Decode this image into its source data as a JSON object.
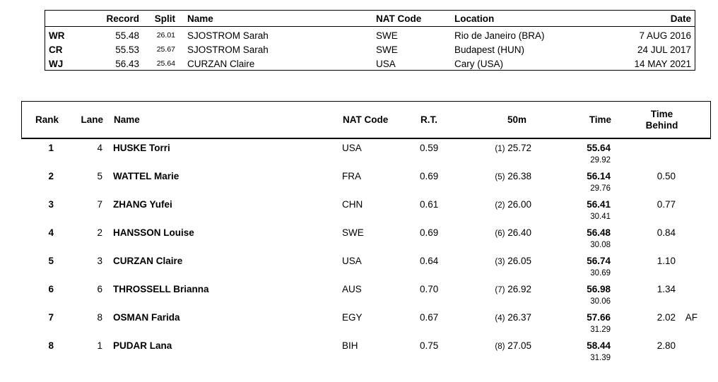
{
  "colors": {
    "text": "#000000",
    "background": "#ffffff",
    "border": "#000000"
  },
  "records_table": {
    "headers": {
      "record": "Record",
      "split": "Split",
      "name": "Name",
      "nat_code": "NAT Code",
      "location": "Location",
      "date": "Date"
    },
    "rows": [
      {
        "tag": "WR",
        "record": "55.48",
        "split": "26.01",
        "name": "SJOSTROM Sarah",
        "nat_code": "SWE",
        "location": "Rio de Janeiro (BRA)",
        "date": "7 AUG 2016"
      },
      {
        "tag": "CR",
        "record": "55.53",
        "split": "25.67",
        "name": "SJOSTROM Sarah",
        "nat_code": "SWE",
        "location": "Budapest (HUN)",
        "date": "24 JUL 2017"
      },
      {
        "tag": "WJ",
        "record": "56.43",
        "split": "25.64",
        "name": "CURZAN Claire",
        "nat_code": "USA",
        "location": "Cary (USA)",
        "date": "14 MAY 2021"
      }
    ]
  },
  "results_table": {
    "headers": {
      "rank": "Rank",
      "lane": "Lane",
      "name": "Name",
      "nat_code": "NAT Code",
      "reaction_time": "R.T.",
      "split_50m": "50m",
      "time": "Time",
      "time_behind_line1": "Time",
      "time_behind_line2": "Behind"
    },
    "rows": [
      {
        "rank": "1",
        "lane": "4",
        "name": "HUSKE Torri",
        "nat_code": "USA",
        "rt": "0.59",
        "split_rank": "(1)",
        "split": "25.72",
        "time": "55.64",
        "second_half": "29.92",
        "behind": "",
        "tag": ""
      },
      {
        "rank": "2",
        "lane": "5",
        "name": "WATTEL Marie",
        "nat_code": "FRA",
        "rt": "0.69",
        "split_rank": "(5)",
        "split": "26.38",
        "time": "56.14",
        "second_half": "29.76",
        "behind": "0.50",
        "tag": ""
      },
      {
        "rank": "3",
        "lane": "7",
        "name": "ZHANG Yufei",
        "nat_code": "CHN",
        "rt": "0.61",
        "split_rank": "(2)",
        "split": "26.00",
        "time": "56.41",
        "second_half": "30.41",
        "behind": "0.77",
        "tag": ""
      },
      {
        "rank": "4",
        "lane": "2",
        "name": "HANSSON Louise",
        "nat_code": "SWE",
        "rt": "0.69",
        "split_rank": "(6)",
        "split": "26.40",
        "time": "56.48",
        "second_half": "30.08",
        "behind": "0.84",
        "tag": ""
      },
      {
        "rank": "5",
        "lane": "3",
        "name": "CURZAN Claire",
        "nat_code": "USA",
        "rt": "0.64",
        "split_rank": "(3)",
        "split": "26.05",
        "time": "56.74",
        "second_half": "30.69",
        "behind": "1.10",
        "tag": ""
      },
      {
        "rank": "6",
        "lane": "6",
        "name": "THROSSELL Brianna",
        "nat_code": "AUS",
        "rt": "0.70",
        "split_rank": "(7)",
        "split": "26.92",
        "time": "56.98",
        "second_half": "30.06",
        "behind": "1.34",
        "tag": ""
      },
      {
        "rank": "7",
        "lane": "8",
        "name": "OSMAN Farida",
        "nat_code": "EGY",
        "rt": "0.67",
        "split_rank": "(4)",
        "split": "26.37",
        "time": "57.66",
        "second_half": "31.29",
        "behind": "2.02",
        "tag": "AF"
      },
      {
        "rank": "8",
        "lane": "1",
        "name": "PUDAR Lana",
        "nat_code": "BIH",
        "rt": "0.75",
        "split_rank": "(8)",
        "split": "27.05",
        "time": "58.44",
        "second_half": "31.39",
        "behind": "2.80",
        "tag": ""
      }
    ]
  }
}
